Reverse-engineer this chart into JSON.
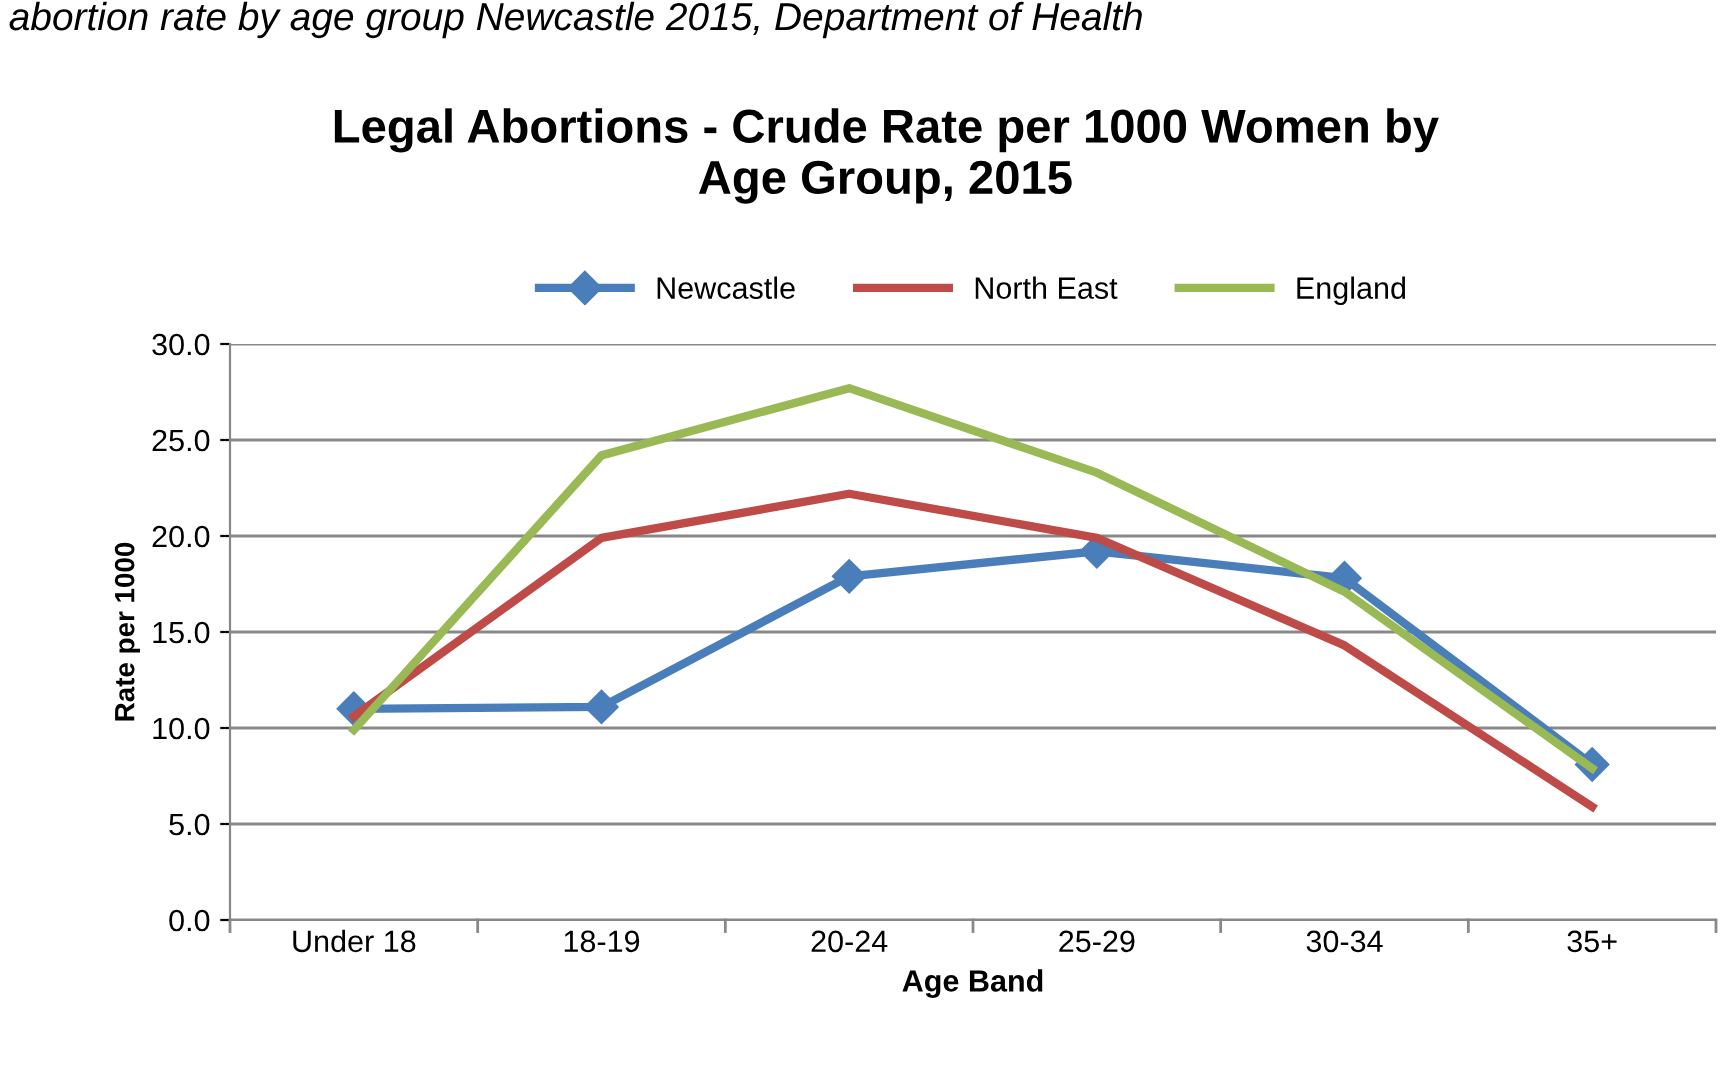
{
  "chart_data": {
    "type": "line",
    "title": "Legal Abortions - Crude Rate per 1000 Women by\nAge Group, 2015",
    "xlabel": "Age Band",
    "ylabel": "Rate per 1000",
    "annotations": [
      "abortion rate by age group Newcastle 2015, Department of Health"
    ],
    "categories": [
      "Under 18",
      "18-19",
      "20-24",
      "25-29",
      "30-34",
      "35+"
    ],
    "series": [
      {
        "name": "Newcastle",
        "color": "#4a7ebb",
        "marker": "diamond",
        "values": [
          11.0,
          11.1,
          17.9,
          19.2,
          17.8,
          8.1
        ]
      },
      {
        "name": "North East",
        "color": "#be4b48",
        "marker": "none",
        "values": [
          10.6,
          19.9,
          22.2,
          19.9,
          14.3,
          5.9
        ]
      },
      {
        "name": "England",
        "color": "#98b954",
        "marker": "none",
        "values": [
          9.9,
          24.2,
          27.7,
          23.3,
          17.1,
          7.9
        ]
      }
    ],
    "ylim": [
      0,
      30
    ],
    "yticks": [
      {
        "value": 0,
        "label": "0.0"
      },
      {
        "value": 5,
        "label": "5.0"
      },
      {
        "value": 10,
        "label": "10.0"
      },
      {
        "value": 15,
        "label": "15.0"
      },
      {
        "value": 20,
        "label": "20.0"
      },
      {
        "value": 25,
        "label": "25.0"
      },
      {
        "value": 30,
        "label": "30.0"
      }
    ],
    "grid": "y",
    "legend": "top",
    "line_style": "solid"
  }
}
